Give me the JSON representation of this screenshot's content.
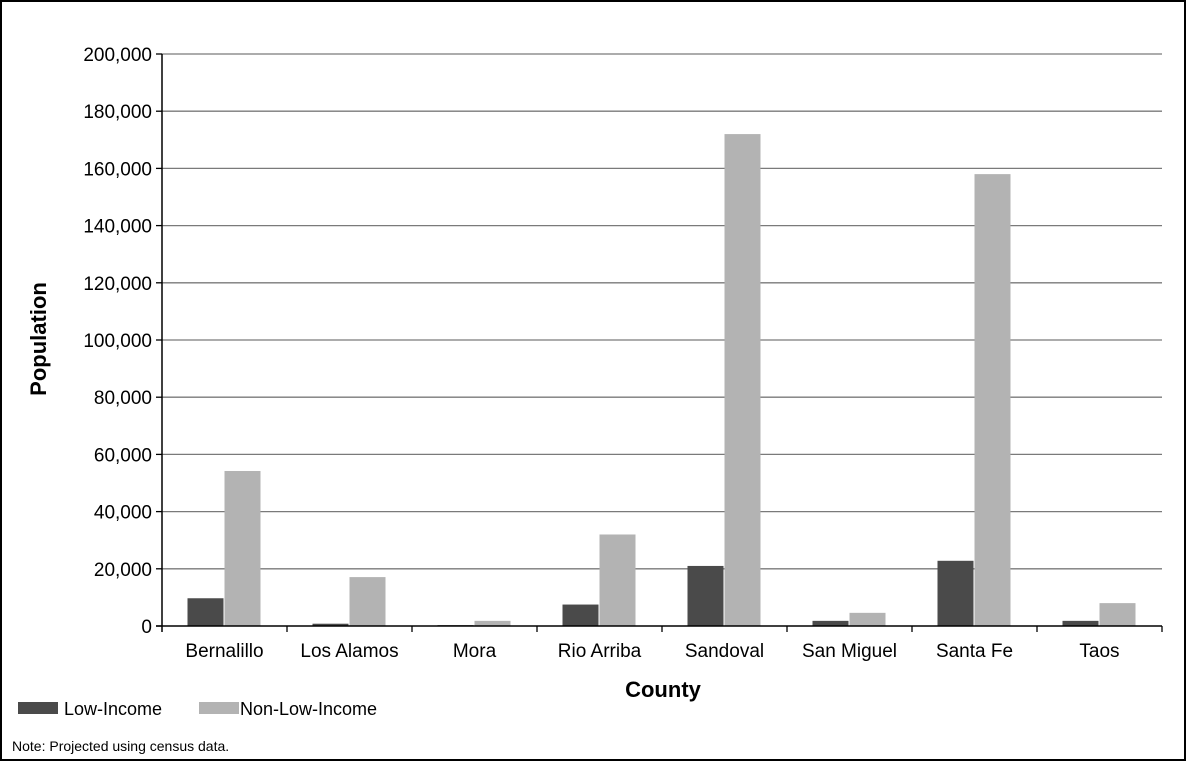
{
  "chart_data": {
    "type": "bar",
    "title": "",
    "xlabel": "County",
    "ylabel": "Population",
    "categories": [
      "Bernalillo",
      "Los Alamos",
      "Mora",
      "Rio Arriba",
      "Sandoval",
      "San Miguel",
      "Santa Fe",
      "Taos"
    ],
    "series": [
      {
        "name": "Low-Income",
        "color": "#4a4a4a",
        "values": [
          9700,
          800,
          300,
          7500,
          21000,
          1800,
          22800,
          1800
        ]
      },
      {
        "name": "Non-Low-Income",
        "color": "#b3b3b3",
        "values": [
          54200,
          17100,
          1800,
          32000,
          172000,
          4600,
          158000,
          8000
        ]
      }
    ],
    "ylim": [
      0,
      200000
    ],
    "yticks": [
      0,
      20000,
      40000,
      60000,
      80000,
      100000,
      120000,
      140000,
      160000,
      180000,
      200000
    ],
    "ytick_labels": [
      "0",
      "20,000",
      "40,000",
      "60,000",
      "80,000",
      "100,000",
      "120,000",
      "140,000",
      "160,000",
      "180,000",
      "200,000"
    ],
    "grid": "horizontal",
    "legend_position": "bottom-left",
    "note": "Note: Projected using census data."
  }
}
